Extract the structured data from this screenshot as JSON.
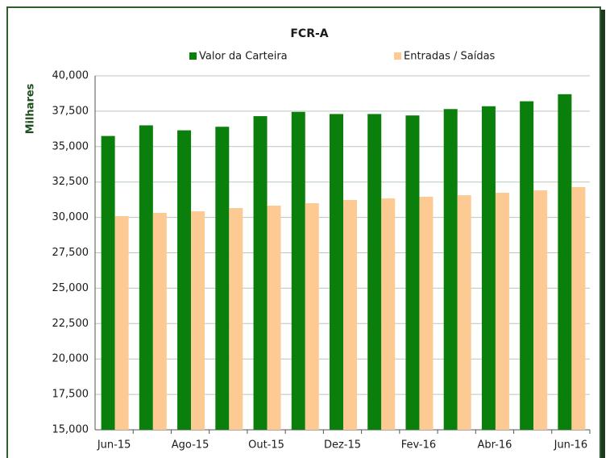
{
  "chart_data": {
    "type": "bar",
    "title": "FCR-A",
    "y_label": "Milhares",
    "categories": [
      "Jun-15",
      null,
      "Ago-15",
      null,
      "Out-15",
      null,
      "Dez-15",
      null,
      "Fev-16",
      null,
      "Abr-16",
      null,
      "Jun-16"
    ],
    "series": [
      {
        "name": "Valor da Carteira",
        "color": "#0b7f0b",
        "values": [
          35750,
          36500,
          36150,
          36400,
          37150,
          37450,
          37300,
          37300,
          37200,
          37650,
          37850,
          38200,
          38700
        ]
      },
      {
        "name": "Entradas / Saídas",
        "color": "#fdca94",
        "values": [
          30090,
          30320,
          30430,
          30660,
          30830,
          31000,
          31230,
          31340,
          31460,
          31570,
          31740,
          31910,
          32140
        ]
      }
    ],
    "ylim": [
      15000,
      40000
    ],
    "yticks": [
      {
        "value": 15000,
        "label": "15,000"
      },
      {
        "value": 17500,
        "label": "17,500"
      },
      {
        "value": 20000,
        "label": "20,000"
      },
      {
        "value": 22500,
        "label": "22,500"
      },
      {
        "value": 25000,
        "label": "25,000"
      },
      {
        "value": 27500,
        "label": "27,500"
      },
      {
        "value": 30000,
        "label": "30,000"
      },
      {
        "value": 32500,
        "label": "32,500"
      },
      {
        "value": 35000,
        "label": "35,000"
      },
      {
        "value": 37500,
        "label": "37,500"
      },
      {
        "value": 40000,
        "label": "40,000"
      }
    ],
    "grid": true
  }
}
